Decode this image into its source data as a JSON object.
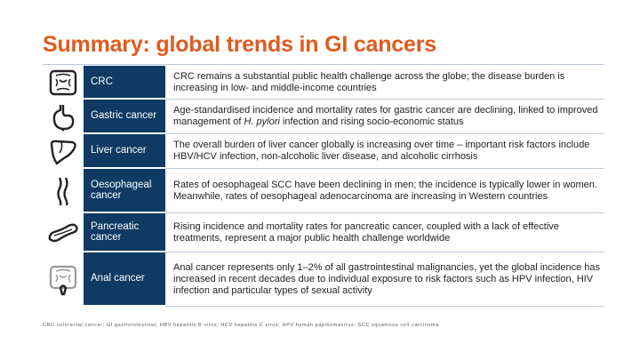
{
  "title": "Summary: global trends in GI cancers",
  "rows": [
    {
      "icon": "colon-icon",
      "label": "CRC",
      "desc": "CRC remains a substantial public health challenge across the globe; the disease burden is increasing in low- and middle-income countries"
    },
    {
      "icon": "stomach-icon",
      "label": "Gastric cancer",
      "desc_before": "Age-standardised incidence and mortality rates for gastric cancer are declining, linked to improved management of ",
      "desc_italic": "H. pylori",
      "desc_after": " infection and rising socio-economic status"
    },
    {
      "icon": "liver-icon",
      "label": "Liver cancer",
      "desc": "The overall burden of liver cancer globally is increasing over time – important risk factors include HBV/HCV infection, non-alcoholic liver disease, and alcoholic cirrhosis"
    },
    {
      "icon": "oesophagus-icon",
      "label": "Oesophageal cancer",
      "desc": "Rates of oesophageal SCC have been declining in men; the incidence is typically lower in women. Meanwhile, rates of oesophageal adenocarcinoma are increasing in Western countries"
    },
    {
      "icon": "pancreas-icon",
      "label": "Pancreatic cancer",
      "desc": "Rising incidence and mortality rates for pancreatic cancer, coupled with a lack of effective treatments, represent a major public health challenge worldwide"
    },
    {
      "icon": "anal-colon-icon",
      "label": "Anal cancer",
      "desc": "Anal cancer represents only 1–2% of all gastrointestinal malignancies, yet the global incidence has increased in recent decades due to individual exposure to risk factors such as HPV infection, HIV infection and particular types of sexual activity"
    }
  ],
  "abbreviations": "CRC colorectal cancer; GI gastrointestinal; HBV hepatitis B virus; HCV hepatitis C virus; HPV human papillomavirus; SCC squamous cell carcinoma"
}
